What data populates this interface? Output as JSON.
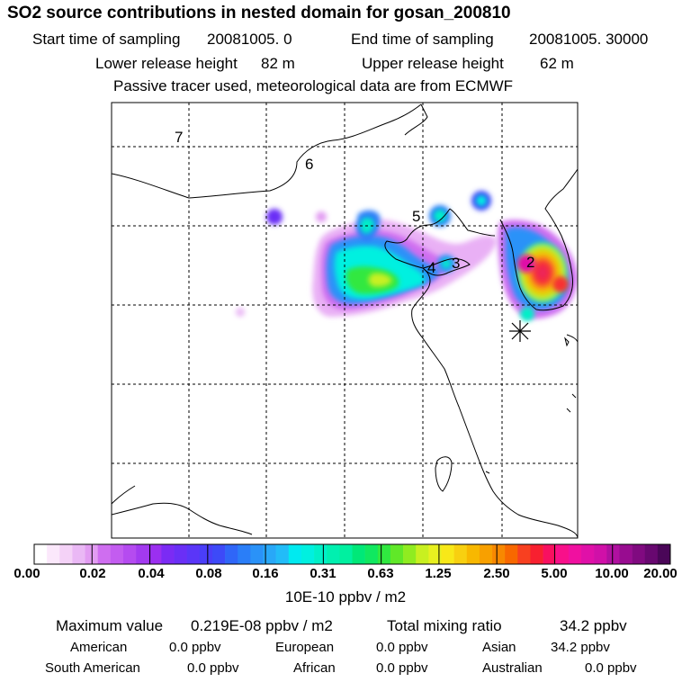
{
  "title": "SO2 source contributions in nested domain for gosan_200810",
  "sampling": {
    "start_label": "Start time of sampling",
    "start_value": "20081005.     0",
    "end_label": "End time of sampling",
    "end_value": "20081005. 30000"
  },
  "release": {
    "lower_label": "Lower release height",
    "lower_value": "82 m",
    "upper_label": "Upper release height",
    "upper_value": "62 m"
  },
  "note": "Passive tracer used, meteorological data are from ECMWF",
  "map": {
    "region_labels": [
      "7",
      "6",
      "5",
      "4",
      "3",
      "2"
    ],
    "receptor_marker": "asterisk-receptor-icon",
    "grid": "dashed"
  },
  "colorbar": {
    "tick_labels": [
      "0.00",
      "0.02",
      "0.04",
      "0.08",
      "0.16",
      "0.31",
      "0.63",
      "1.25",
      "2.50",
      "5.00",
      "10.00",
      "20.00"
    ],
    "unit": "10E-10 ppbv / m2",
    "colors": [
      "#ffffff",
      "#fbe8fb",
      "#f4d2f7",
      "#eab8f5",
      "#e29cf2",
      "#cf6ef0",
      "#c35cf0",
      "#b54bf0",
      "#a33af0",
      "#9b2ff0",
      "#7b2bf4",
      "#6a2ff6",
      "#5a36f8",
      "#4a3ef8",
      "#3d4af8",
      "#2f66f8",
      "#2a7ef8",
      "#2a92f8",
      "#28a8f8",
      "#22bcf8",
      "#00eaf0",
      "#00f0e0",
      "#00f0c8",
      "#00f0b0",
      "#00f0a0",
      "#00e878",
      "#10e860",
      "#30e840",
      "#60e828",
      "#90ec20",
      "#c8f020",
      "#e8f020",
      "#f8e818",
      "#f8d010",
      "#f8b800",
      "#f8a000",
      "#f88800",
      "#f86800",
      "#f84020",
      "#f82030",
      "#f81060",
      "#f8108a",
      "#f010a0",
      "#e010a8",
      "#d010a8",
      "#b010a0",
      "#980c90",
      "#800a80",
      "#680870",
      "#4a0658"
    ]
  },
  "summary": {
    "max_label": "Maximum value",
    "max_value": "0.219E-08 ppbv / m2",
    "total_label": "Total mixing ratio",
    "total_value": "34.2 ppbv"
  },
  "regions": [
    {
      "name": "American",
      "value": "0.0 ppbv"
    },
    {
      "name": "European",
      "value": "0.0 ppbv"
    },
    {
      "name": "Asian",
      "value": "34.2 ppbv"
    },
    {
      "name": "South American",
      "value": "0.0 ppbv"
    },
    {
      "name": "African",
      "value": "0.0 ppbv"
    },
    {
      "name": "Australian",
      "value": "0.0 ppbv"
    }
  ]
}
